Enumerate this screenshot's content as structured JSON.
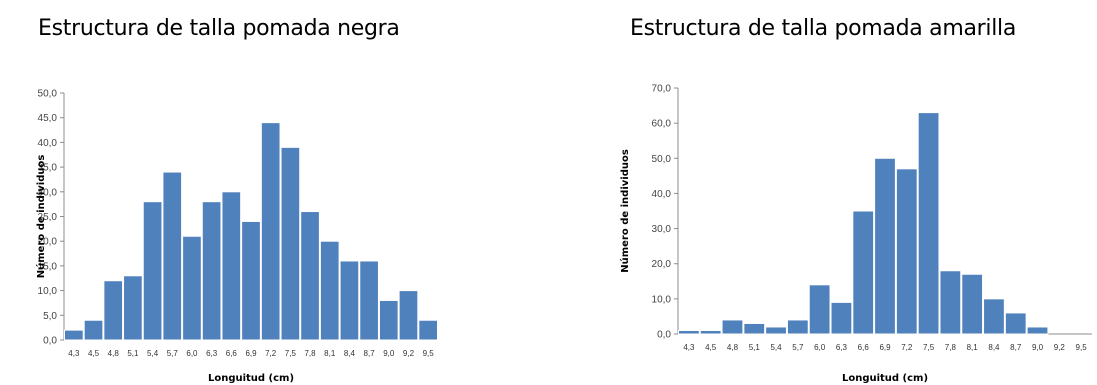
{
  "colors": {
    "bar": "#4f81bd",
    "bar_edge": "#ffffff",
    "axis": "#8c8c8c"
  },
  "chart_data": [
    {
      "type": "bar",
      "title": "Estructura de talla pomada negra",
      "xlabel": "Longuitud (cm)",
      "ylabel": "Número de individuos",
      "ylim": [
        0,
        50
      ],
      "ytick_step": 5,
      "ytick_labels": [
        "0,0",
        "5,0",
        "10,0",
        "15,0",
        "20,0",
        "25,0",
        "30,0",
        "35,0",
        "40,0",
        "45,0",
        "50,0"
      ],
      "categories": [
        "4,3",
        "4,5",
        "4,8",
        "5,1",
        "5,4",
        "5,7",
        "6,0",
        "6,3",
        "6,6",
        "6,9",
        "7,2",
        "7,5",
        "7,8",
        "8,1",
        "8,4",
        "8,7",
        "9,0",
        "9,2",
        "9,5"
      ],
      "values": [
        2,
        4,
        12,
        13,
        28,
        34,
        21,
        28,
        30,
        24,
        44,
        39,
        26,
        20,
        16,
        16,
        8,
        10,
        4
      ],
      "grid": false,
      "legend": "none"
    },
    {
      "type": "bar",
      "title": "Estructura de talla pomada amarilla",
      "xlabel": "Longuitud (cm)",
      "ylabel": "Número de individuos",
      "ylim": [
        0,
        70
      ],
      "ytick_step": 10,
      "ytick_labels": [
        "0,0",
        "10,0",
        "20,0",
        "30,0",
        "40,0",
        "50,0",
        "60,0",
        "70,0"
      ],
      "categories": [
        "4,3",
        "4,5",
        "4,8",
        "5,1",
        "5,4",
        "5,7",
        "6,0",
        "6,3",
        "6,6",
        "6,9",
        "7,2",
        "7,5",
        "7,8",
        "8,1",
        "8,4",
        "8,7",
        "9,0",
        "9,2",
        "9,5"
      ],
      "values": [
        1,
        1,
        4,
        3,
        2,
        4,
        14,
        9,
        35,
        50,
        47,
        63,
        18,
        17,
        10,
        6,
        2,
        0,
        0
      ],
      "grid": false,
      "legend": "none"
    }
  ]
}
